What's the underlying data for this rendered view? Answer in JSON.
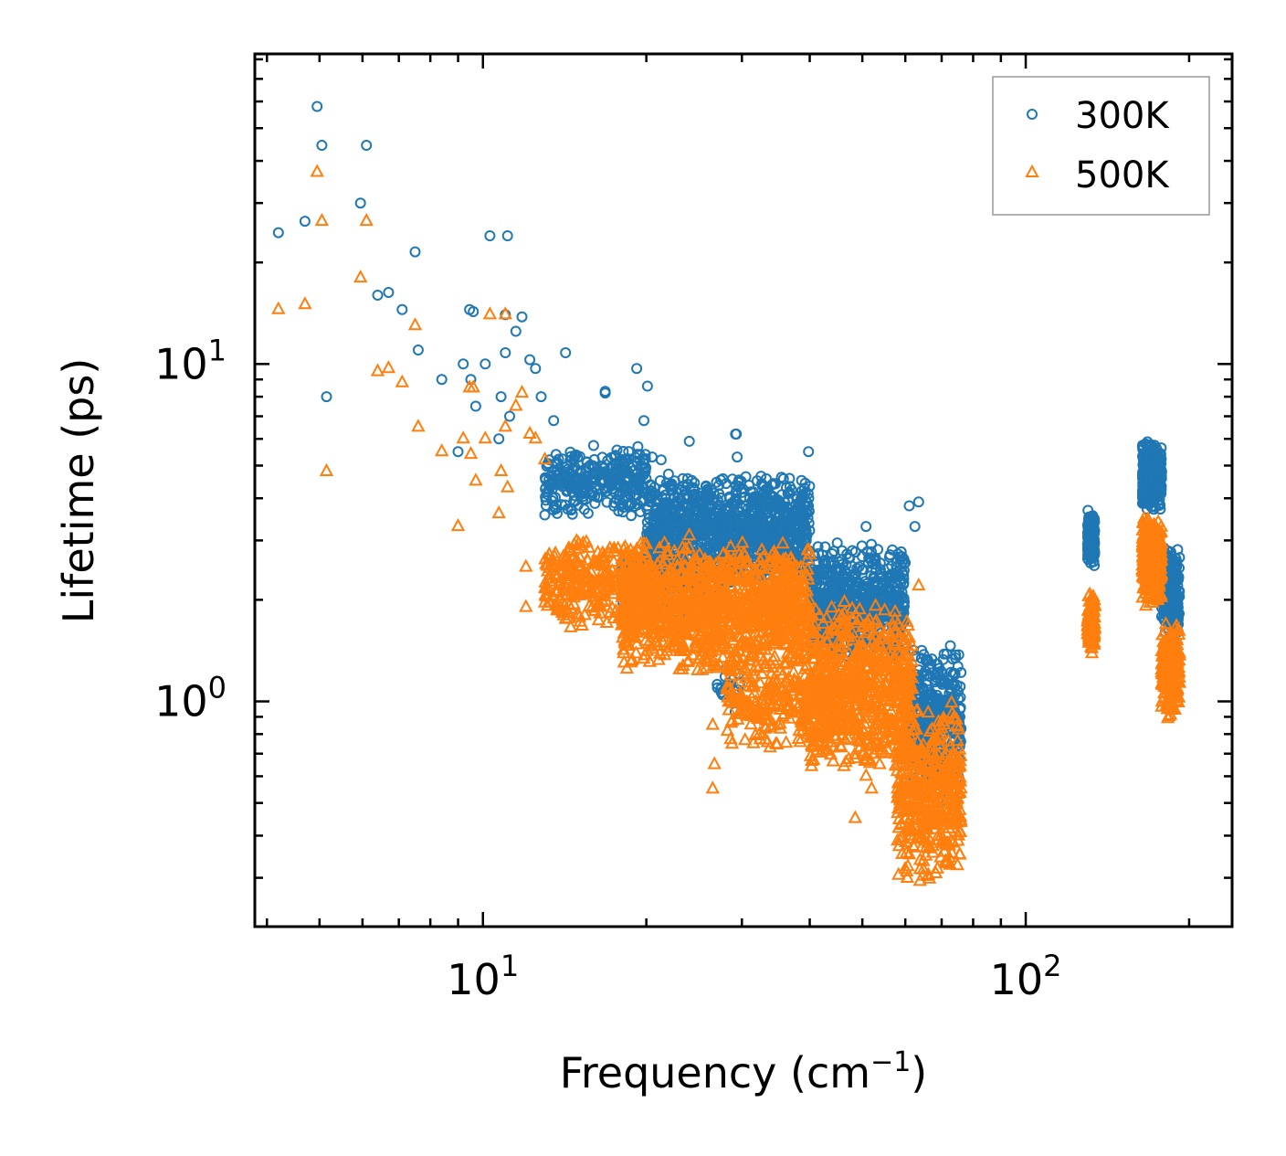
{
  "chart_data": {
    "type": "scatter",
    "xscale": "log",
    "yscale": "log",
    "xlim": [
      3.8,
      240
    ],
    "ylim": [
      0.215,
      83
    ],
    "xlabel_base": "Frequency (cm",
    "xlabel_sup": "−1",
    "xlabel_close": ")",
    "ylabel": "Lifetime (ps)",
    "x_major_ticks": [
      {
        "value": 10,
        "base": "10",
        "exp": "1"
      },
      {
        "value": 100,
        "base": "10",
        "exp": "2"
      }
    ],
    "y_major_ticks": [
      {
        "value": 1,
        "base": "10",
        "exp": "0"
      },
      {
        "value": 10,
        "base": "10",
        "exp": "1"
      }
    ],
    "legend_position": "top-right",
    "series": [
      {
        "name": "300K",
        "color": "#1f77b4",
        "marker": "circle",
        "points": [
          [
            4.2,
            24.5
          ],
          [
            4.7,
            26.5
          ],
          [
            4.95,
            58
          ],
          [
            5.05,
            44.5
          ],
          [
            5.15,
            8.0
          ],
          [
            5.95,
            30
          ],
          [
            6.1,
            44.5
          ],
          [
            6.4,
            16
          ],
          [
            6.7,
            16.3
          ],
          [
            7.1,
            14.5
          ],
          [
            7.5,
            21.5
          ],
          [
            7.6,
            11
          ],
          [
            8.4,
            9
          ],
          [
            9.0,
            5.5
          ],
          [
            9.2,
            10
          ],
          [
            9.45,
            14.5
          ],
          [
            9.5,
            9
          ],
          [
            9.6,
            14.3
          ],
          [
            9.7,
            7.5
          ],
          [
            10.1,
            10
          ],
          [
            10.3,
            24
          ],
          [
            10.7,
            6
          ],
          [
            10.8,
            8
          ],
          [
            11.0,
            10.8
          ],
          [
            11.0,
            14
          ],
          [
            11.1,
            24
          ],
          [
            11.2,
            7
          ],
          [
            11.5,
            12.5
          ],
          [
            11.8,
            13.8
          ],
          [
            12.2,
            10.3
          ],
          [
            12.5,
            9.7
          ],
          [
            12.8,
            8
          ],
          [
            13.5,
            6.8
          ],
          [
            14.2,
            10.8
          ],
          [
            16.8,
            8.3
          ],
          [
            16.8,
            8.2
          ],
          [
            19.2,
            9.7
          ],
          [
            19.8,
            6.8
          ],
          [
            20.1,
            8.6
          ],
          [
            20.5,
            5.3
          ],
          [
            21.3,
            5.2
          ],
          [
            24.0,
            5.9
          ],
          [
            29.2,
            6.2
          ],
          [
            29.3,
            6.2
          ],
          [
            29.4,
            5.3
          ],
          [
            39.8,
            5.5
          ],
          [
            63.5,
            3.9
          ],
          [
            62.5,
            3.3
          ],
          [
            61.0,
            3.8
          ],
          [
            50.8,
            3.3
          ]
        ],
        "clusters": [
          {
            "x": [
              13,
              20
            ],
            "y": [
              3.5,
              5.8
            ],
            "n": 320
          },
          {
            "x": [
              20,
              40
            ],
            "y": [
              2.2,
              4.8
            ],
            "n": 1100
          },
          {
            "x": [
              18,
              28
            ],
            "y": [
              1.6,
              3.0
            ],
            "n": 200
          },
          {
            "x": [
              40,
              60
            ],
            "y": [
              1.3,
              3.0
            ],
            "n": 650
          },
          {
            "x": [
              60,
              76
            ],
            "y": [
              0.5,
              1.5
            ],
            "n": 420
          },
          {
            "x": [
              27,
              30
            ],
            "y": [
              0.9,
              1.3
            ],
            "n": 20
          },
          {
            "x": [
              130,
              134
            ],
            "y": [
              2.5,
              3.7
            ],
            "n": 130
          },
          {
            "x": [
              164,
              178
            ],
            "y": [
              3.6,
              6.0
            ],
            "n": 320
          },
          {
            "x": [
              178,
              192
            ],
            "y": [
              1.5,
              3.0
            ],
            "n": 220
          }
        ]
      },
      {
        "name": "500K",
        "color": "#ff7f0e",
        "marker": "triangle",
        "points": [
          [
            4.2,
            14.5
          ],
          [
            4.7,
            15
          ],
          [
            4.95,
            37
          ],
          [
            5.05,
            26.5
          ],
          [
            5.15,
            4.8
          ],
          [
            5.95,
            18
          ],
          [
            6.1,
            26.5
          ],
          [
            6.4,
            9.5
          ],
          [
            6.7,
            9.7
          ],
          [
            7.1,
            8.8
          ],
          [
            7.5,
            13
          ],
          [
            7.6,
            6.5
          ],
          [
            8.4,
            5.5
          ],
          [
            9.0,
            3.3
          ],
          [
            9.2,
            6
          ],
          [
            9.45,
            8.5
          ],
          [
            9.5,
            5.4
          ],
          [
            9.6,
            8.5
          ],
          [
            9.7,
            4.5
          ],
          [
            10.1,
            6
          ],
          [
            10.3,
            14
          ],
          [
            10.7,
            3.6
          ],
          [
            10.8,
            4.8
          ],
          [
            11.0,
            6.5
          ],
          [
            11.0,
            14
          ],
          [
            11.1,
            4.3
          ],
          [
            11.5,
            7.5
          ],
          [
            11.8,
            8.2
          ],
          [
            12.2,
            6.2
          ],
          [
            12.5,
            6
          ],
          [
            13.0,
            5.2
          ],
          [
            12.0,
            2.5
          ],
          [
            12.0,
            1.9
          ],
          [
            13.5,
            2.6
          ],
          [
            14.2,
            1.75
          ],
          [
            24.0,
            3.1
          ],
          [
            26.5,
            0.85
          ],
          [
            26.7,
            0.65
          ],
          [
            26.5,
            0.55
          ],
          [
            31.5,
            0.75
          ],
          [
            35.0,
            0.85
          ],
          [
            48.5,
            0.45
          ],
          [
            50.8,
            0.6
          ],
          [
            52.0,
            0.55
          ],
          [
            55.0,
            0.7
          ],
          [
            58.0,
            0.62
          ],
          [
            60.0,
            0.52
          ],
          [
            63.5,
            2.2
          ],
          [
            66.0,
            0.38
          ],
          [
            68.0,
            0.48
          ]
        ],
        "clusters": [
          {
            "x": [
              13,
              20
            ],
            "y": [
              1.6,
              3.1
            ],
            "n": 300
          },
          {
            "x": [
              18,
              40
            ],
            "y": [
              1.2,
              3.0
            ],
            "n": 1200
          },
          {
            "x": [
              28,
              46
            ],
            "y": [
              0.7,
              1.5
            ],
            "n": 300
          },
          {
            "x": [
              40,
              62
            ],
            "y": [
              0.6,
              2.0
            ],
            "n": 700
          },
          {
            "x": [
              58,
              76
            ],
            "y": [
              0.28,
              1.0
            ],
            "n": 450
          },
          {
            "x": [
              130,
              134
            ],
            "y": [
              1.35,
              2.1
            ],
            "n": 130
          },
          {
            "x": [
              164,
              178
            ],
            "y": [
              1.9,
              3.6
            ],
            "n": 320
          },
          {
            "x": [
              178,
              192
            ],
            "y": [
              0.88,
              1.75
            ],
            "n": 220
          }
        ]
      }
    ]
  }
}
